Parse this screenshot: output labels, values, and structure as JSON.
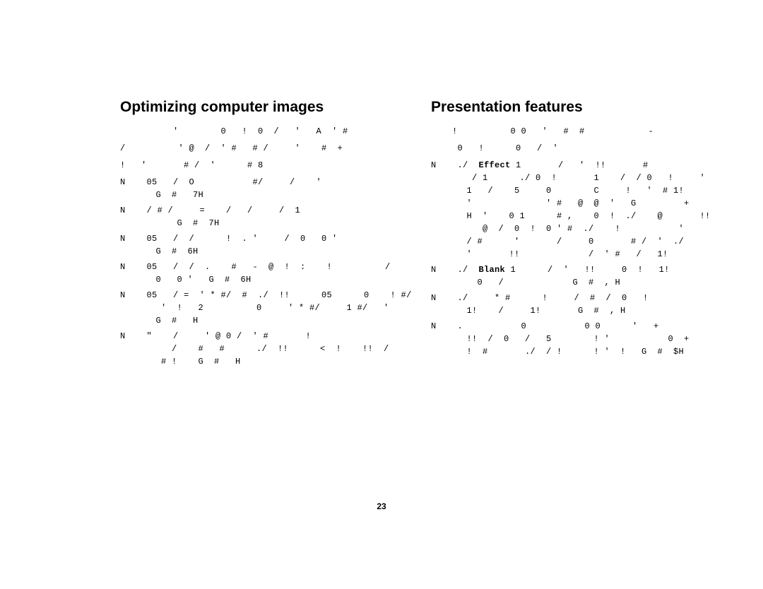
{
  "page_number": "23",
  "left": {
    "heading": "Optimizing computer images",
    "intro_lines": [
      "          '        0   !  0  /   '   A  ' #",
      "/          ' @  /  ' #   # /     '    #  +",
      "!   '       # /  '      # 8"
    ],
    "bullets": [
      "N    05   /  O           #/     /    '\n   G  #   7H",
      "N    / # /     =    /   /     /  1\n       G  #  7H",
      "N    05   /  /      !  . '     /  0   0 '\n   G  #  6H",
      "N    05   /  /  .    #   -  @  !  :    !          /\n   0   0 '   G  #  6H",
      "N    05   / =  ' * #/  #  ./  !!      05      0    ! #/\n    '  !   2          0     ' * #/     1 #/   '\n   G  #   H",
      "N    \"    /     ' @ 0 /  ' #       !\n      /    #   #      ./  !!      <  !    !!  /\n    # !    G  #   H"
    ]
  },
  "right": {
    "heading": "Presentation features",
    "intro_lines": [
      "    !          0 0   '   #  #            -",
      "     0   !      0   /  '"
    ],
    "bullets": [
      {
        "parts": [
          {
            "t": "N    ./  ",
            "b": false
          },
          {
            "t": "Effect",
            "b": true
          },
          {
            "t": " 1       /   '  !!       #\n    / 1      ./ 0  !       1    /  / 0   !     '\n   1   /    5     0        C     !   '  # 1!\n   '              ' #   @  @  '   G         +\n   H  '    0 1      # ,    0  !  ./    @       !!\n      @  /  0  !  0 ' #  ./    !           '\n   / #      '       /     0       # /  '  ./\n   '       !!             /  ' #   /   1!",
            "b": false
          }
        ]
      },
      {
        "parts": [
          {
            "t": "N    ./  ",
            "b": false
          },
          {
            "t": "Blank",
            "b": true
          },
          {
            "t": " 1      /  '   !!     0  !   1!\n     0   /             G  #  , H",
            "b": false
          }
        ]
      },
      {
        "parts": [
          {
            "t": "N    ./     * #      !     /  #  /  0   !\n   1!    /     1!       G  #  , H",
            "b": false
          }
        ]
      },
      {
        "parts": [
          {
            "t": "N    .           0           0 0      '   +\n   !!  /  0   /   5        ! '           0  +\n   !  #       ./  / !      ! '  !   G  #  $H",
            "b": false
          }
        ]
      }
    ]
  },
  "colors": {
    "background": "#ffffff",
    "text": "#000000"
  }
}
